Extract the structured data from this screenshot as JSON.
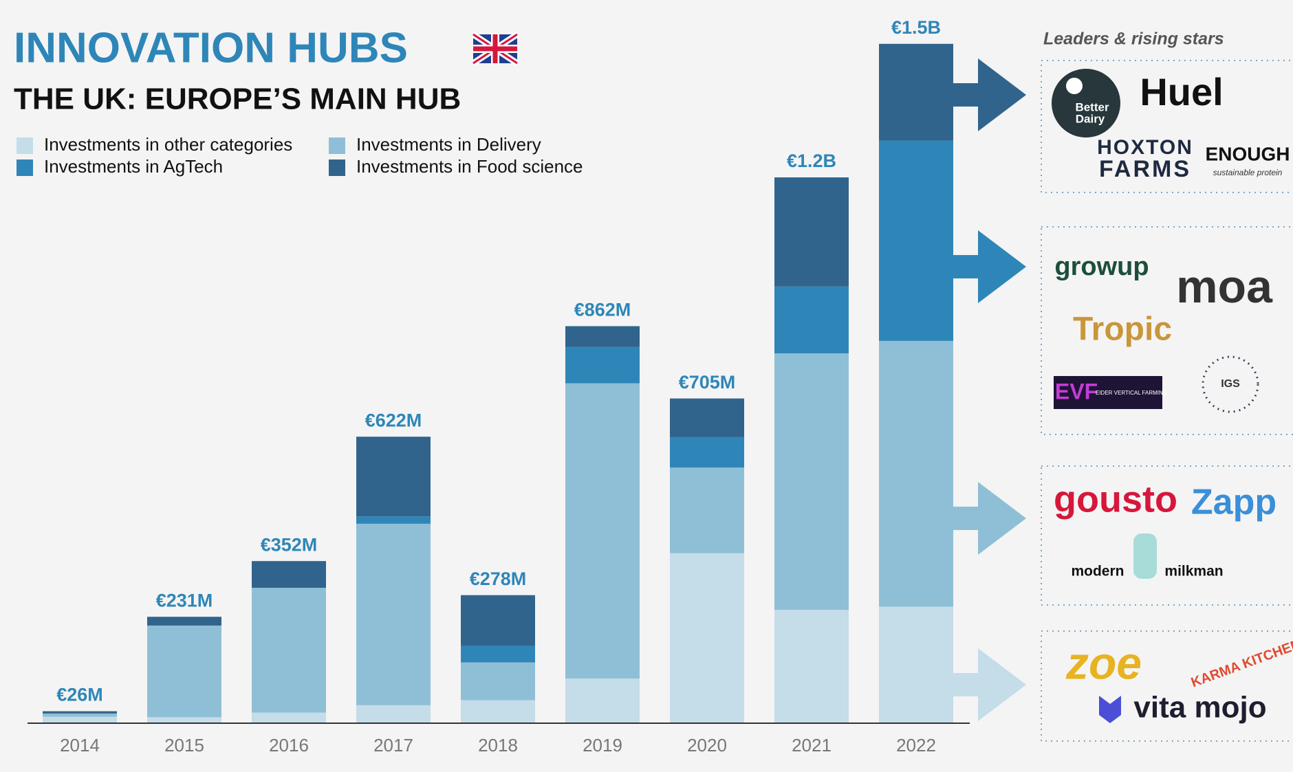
{
  "title": "INNOVATION HUBS",
  "chart_data": {
    "type": "stacked_bar",
    "subtitle": "THE UK: EUROPE’S MAIN HUB",
    "categories": [
      "2014",
      "2015",
      "2016",
      "2017",
      "2018",
      "2019",
      "2020",
      "2021",
      "2022"
    ],
    "series": [
      {
        "name": "Investments in other categories",
        "color": "#c5dce9",
        "values": [
          14,
          13,
          23,
          39,
          50,
          97,
          369,
          246,
          253
        ]
      },
      {
        "name": "Investments in Delivery",
        "color": "#8fbfd6",
        "values": [
          7,
          199,
          271,
          394,
          82,
          641,
          186,
          557,
          577
        ]
      },
      {
        "name": "Investments in AgTech",
        "color": "#2e86b8",
        "values": [
          0,
          0,
          0,
          16,
          36,
          79,
          66,
          145,
          435
        ]
      },
      {
        "name": "Investments in Food science",
        "color": "#31648c",
        "values": [
          5,
          19,
          58,
          173,
          110,
          45,
          84,
          237,
          210
        ]
      }
    ],
    "totals": {
      "values": [
        26,
        231,
        352,
        622,
        278,
        862,
        705,
        1200,
        1500
      ],
      "value_labels": [
        "€26M",
        "€231M",
        "€352M",
        "€622M",
        "€278M",
        "€862M",
        "€705M",
        "€1.2B",
        "€1.5B"
      ]
    },
    "ylim": [
      0,
      1500
    ]
  },
  "panel": {
    "title": "Leaders & rising stars",
    "groups": [
      {
        "logos": [
          "Better",
          "Dairy",
          "Huel",
          "HOXTON",
          "FARMS",
          "ENOUGH",
          "sustainable protein"
        ]
      },
      {
        "logos": [
          "growup",
          "moa",
          "Tropic",
          "EVF",
          "EIDER VERTICAL FARMING",
          "IGS"
        ]
      },
      {
        "logos": [
          "gousto",
          "Zapp",
          "modern",
          "milkman"
        ]
      },
      {
        "logos": [
          "zoe",
          "KARMA KITCHEN",
          "vita mojo"
        ]
      }
    ]
  }
}
